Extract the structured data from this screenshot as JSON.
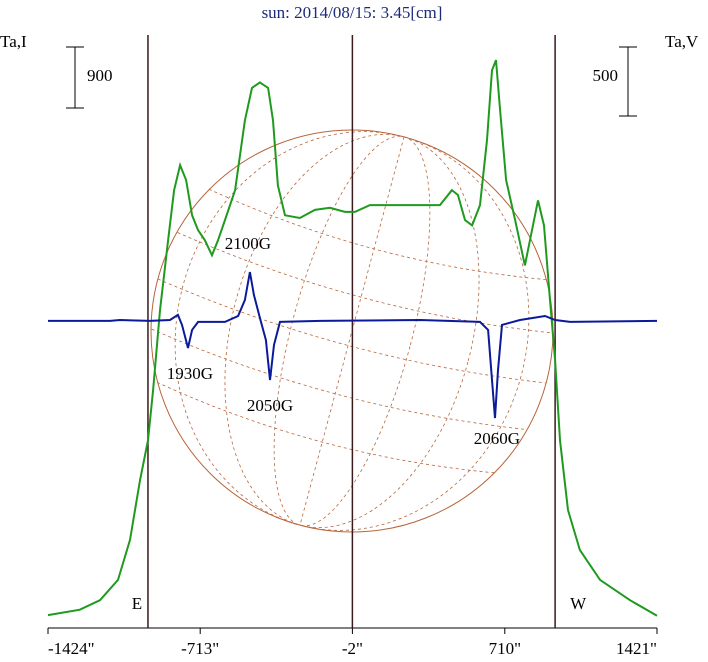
{
  "chart_data": {
    "type": "line",
    "title": "sun: 2014/08/15: 3.45[cm]",
    "y_label": "Ta,I",
    "y2_label": "Ta,V",
    "xlim": [
      -1424,
      1421
    ],
    "xticks": [
      {
        "value": -1424,
        "label": "-1424\""
      },
      {
        "value": -713,
        "label": "-713\""
      },
      {
        "value": -2,
        "label": "-2\""
      },
      {
        "value": 710,
        "label": "710\""
      },
      {
        "value": 1421,
        "label": "1421\""
      }
    ],
    "ylim": [
      0,
      8750
    ],
    "y2lim": [
      -2226,
      2073
    ],
    "series": [
      {
        "name": "Ta,I",
        "color": "#1f9a1f",
        "axis": "y",
        "x": [
          -1424,
          -1275,
          -1181,
          -1097,
          -1041,
          -994,
          -957,
          -933,
          -901,
          -863,
          -835,
          -807,
          -779,
          -751,
          -723,
          -691,
          -658,
          -630,
          -597,
          -550,
          -504,
          -471,
          -434,
          -396,
          -373,
          -350,
          -317,
          -247,
          -177,
          -107,
          -37,
          10,
          80,
          174,
          314,
          407,
          463,
          491,
          524,
          557,
          594,
          627,
          650,
          669,
          688,
          716,
          758,
          804,
          837,
          865,
          893,
          921,
          945,
          968,
          1005,
          1061,
          1155,
          1295,
          1421
        ],
        "values": [
          190,
          270,
          410,
          710,
          1300,
          2180,
          2770,
          3510,
          4690,
          5720,
          6460,
          6830,
          6610,
          6090,
          5870,
          5720,
          5500,
          5720,
          6020,
          6460,
          7490,
          7970,
          8050,
          7970,
          7490,
          6530,
          6090,
          6050,
          6170,
          6200,
          6140,
          6140,
          6240,
          6240,
          6240,
          6240,
          6460,
          6390,
          6020,
          5940,
          6240,
          7200,
          8230,
          8380,
          7640,
          6610,
          6020,
          5350,
          5870,
          6310,
          5940,
          4840,
          3950,
          2770,
          1740,
          1150,
          710,
          410,
          180
        ]
      },
      {
        "name": "Ta,V",
        "color": "#0a1a9a",
        "axis": "y2",
        "x": [
          -1424,
          -1134,
          -1088,
          -948,
          -854,
          -817,
          -798,
          -770,
          -751,
          -723,
          -597,
          -536,
          -504,
          -481,
          -462,
          -434,
          -406,
          -387,
          -368,
          -340,
          -153,
          314,
          594,
          632,
          650,
          664,
          678,
          697,
          781,
          898,
          945,
          1015,
          1421
        ],
        "values": [
          0,
          0,
          7,
          0,
          7,
          44,
          -29,
          -196,
          -65,
          -7,
          -7,
          36,
          152,
          355,
          189,
          22,
          -138,
          -428,
          -174,
          -7,
          0,
          7,
          -7,
          -65,
          -428,
          -704,
          -356,
          -29,
          7,
          36,
          7,
          -7,
          0
        ]
      }
    ],
    "markers": [
      {
        "label": "E",
        "x": -957
      },
      {
        "label": "W",
        "x": 945
      }
    ],
    "scale_bars": [
      {
        "value": 900,
        "axis": "y"
      },
      {
        "value": 500,
        "axis": "y2"
      }
    ],
    "annotations": [
      {
        "text": "2100G",
        "x": -490,
        "y": 5650,
        "axis": "y"
      },
      {
        "text": "1930G",
        "x": -761,
        "y": -392,
        "axis": "y2"
      },
      {
        "text": "2050G",
        "x": -387,
        "y": -624,
        "axis": "y2"
      },
      {
        "text": "2060G",
        "x": 673,
        "y": -863,
        "axis": "y2"
      }
    ]
  }
}
